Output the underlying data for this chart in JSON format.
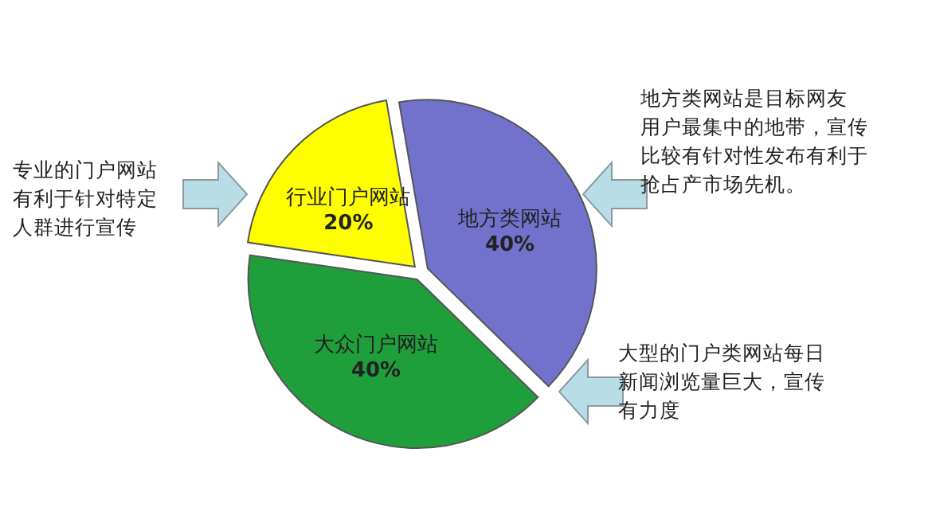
{
  "chart_data": {
    "type": "pie",
    "categories": [
      "地方类网站",
      "大众门户网站",
      "行业门户网站"
    ],
    "values": [
      40,
      40,
      20
    ],
    "colors": [
      "#7272cc",
      "#1f9e3c",
      "#ffff00"
    ],
    "value_labels": [
      "40%",
      "40%",
      "20%"
    ],
    "annotations": [
      "地方类网站是目标网友用户最集中的地带，宣传比较有针对性发布有利于抢占产市场先机。",
      "大型的门户类网站每日新闻浏览量巨大，宣传有力度",
      "专业的门户网站有利于针对特定人群进行宣传"
    ]
  }
}
